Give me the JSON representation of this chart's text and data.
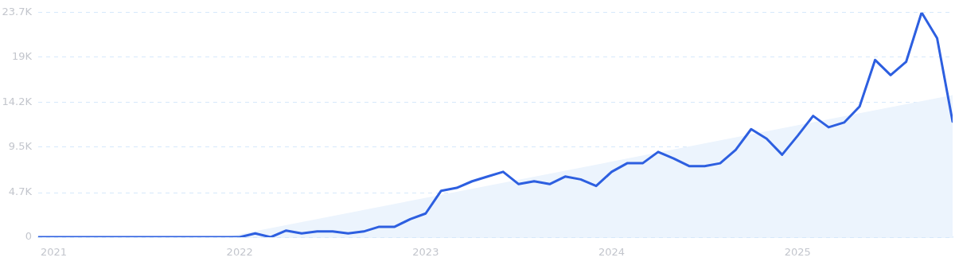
{
  "chart_data": {
    "type": "line",
    "marker": "none",
    "line_style": "solid",
    "grid": "y",
    "legend": false,
    "xlim": [
      "2020-12",
      "2025-11"
    ],
    "xticks": [
      "2021",
      "2022",
      "2023",
      "2024",
      "2025"
    ],
    "ylim": [
      0,
      23700
    ],
    "yticks": [
      0,
      {
        "value": 4700,
        "label": "4.7K"
      },
      {
        "value": 9500,
        "label": "9.5K"
      },
      {
        "value": 14200,
        "label": "14.2K"
      },
      {
        "value": 19000,
        "label": "19K"
      },
      {
        "value": 23700,
        "label": "23.7K"
      }
    ],
    "series": [
      {
        "type": "area",
        "color": "#ecf4fd",
        "x": [
          "2021-12",
          "2025-11"
        ],
        "values": [
          0,
          15000
        ]
      },
      {
        "color": "#2d5fe0",
        "x": [
          "2020-12",
          "2021-01",
          "2021-02",
          "2021-03",
          "2021-04",
          "2021-05",
          "2021-06",
          "2021-07",
          "2021-08",
          "2021-09",
          "2021-10",
          "2021-11",
          "2021-12",
          "2022-01",
          "2022-02",
          "2022-03",
          "2022-04",
          "2022-05",
          "2022-06",
          "2022-07",
          "2022-08",
          "2022-09",
          "2022-10",
          "2022-11",
          "2022-12",
          "2023-01",
          "2023-02",
          "2023-03",
          "2023-04",
          "2023-05",
          "2023-06",
          "2023-07",
          "2023-08",
          "2023-09",
          "2023-10",
          "2023-11",
          "2023-12",
          "2024-01",
          "2024-02",
          "2024-03",
          "2024-04",
          "2024-05",
          "2024-06",
          "2024-07",
          "2024-08",
          "2024-09",
          "2024-10",
          "2024-11",
          "2024-12",
          "2025-01",
          "2025-02",
          "2025-03",
          "2025-04",
          "2025-05",
          "2025-06",
          "2025-07",
          "2025-08",
          "2025-09",
          "2025-10",
          "2025-11"
        ],
        "values": [
          0,
          0,
          0,
          0,
          0,
          0,
          0,
          0,
          0,
          0,
          0,
          0,
          0,
          0,
          400,
          0,
          700,
          400,
          600,
          600,
          400,
          600,
          1100,
          1100,
          1900,
          2500,
          4900,
          5200,
          5900,
          6400,
          6900,
          5600,
          5900,
          5600,
          6400,
          6100,
          5400,
          6900,
          7800,
          7800,
          9000,
          8300,
          7500,
          7500,
          7800,
          9200,
          11400,
          10400,
          8700,
          10700,
          12800,
          11600,
          12100,
          13800,
          18700,
          17100,
          18500,
          23700,
          21000,
          12200
        ]
      }
    ]
  }
}
